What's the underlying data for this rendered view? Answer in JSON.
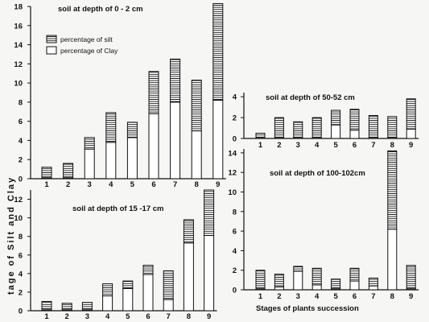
{
  "figure": {
    "ylabel": "tage of Silt and Clay",
    "xlabel": "Stages of plants succession"
  },
  "colors": {
    "ink": "#111111",
    "paper": "#f6f6f4",
    "bar_fill": "#ffffff"
  },
  "chart_data": [
    {
      "type": "bar",
      "stacked": true,
      "title": "soil at depth of 0 - 2 cm",
      "categories": [
        "1",
        "2",
        "3",
        "4",
        "5",
        "6",
        "7",
        "8",
        "9"
      ],
      "series": [
        {
          "name": "percentage of Clay",
          "pattern": "plain",
          "values": [
            0.1,
            0.1,
            3.1,
            3.8,
            4.3,
            6.8,
            8.0,
            5.0,
            8.2
          ]
        },
        {
          "name": "percentage of silt",
          "pattern": "horizontal-hatch",
          "values": [
            1.1,
            1.5,
            1.2,
            3.1,
            1.6,
            4.4,
            4.5,
            5.3,
            10.1
          ]
        }
      ],
      "yticks": [
        "0",
        "2",
        "4",
        "6",
        "8",
        "10",
        "12",
        "14",
        "16",
        "18"
      ],
      "ylim": [
        0,
        18
      ],
      "legend": "top-left"
    },
    {
      "type": "bar",
      "stacked": true,
      "title": "soil at depth of 15 -17 cm",
      "categories": [
        "1",
        "2",
        "3",
        "4",
        "5",
        "6",
        "7",
        "8",
        "9"
      ],
      "series": [
        {
          "name": "percentage of Clay",
          "pattern": "plain",
          "values": [
            0.1,
            0.1,
            0.1,
            1.6,
            2.4,
            3.9,
            1.2,
            7.3,
            8.1
          ]
        },
        {
          "name": "percentage of silt",
          "pattern": "horizontal-hatch",
          "values": [
            0.9,
            0.7,
            0.8,
            1.3,
            0.8,
            1.0,
            3.1,
            2.5,
            4.9
          ]
        }
      ],
      "yticks": [
        "0",
        "2",
        "4",
        "6",
        "8",
        "10",
        "12"
      ],
      "ylim": [
        0,
        13
      ]
    },
    {
      "type": "bar",
      "stacked": true,
      "title": "soil at depth of 50-52 cm",
      "categories": [
        "1",
        "2",
        "3",
        "4",
        "5",
        "6",
        "7",
        "8",
        "9"
      ],
      "series": [
        {
          "name": "percentage of Clay",
          "pattern": "plain",
          "values": [
            0.1,
            0.1,
            0.1,
            0.1,
            1.3,
            0.8,
            0.1,
            0.1,
            0.9
          ]
        },
        {
          "name": "percentage of silt",
          "pattern": "horizontal-hatch",
          "values": [
            0.4,
            1.9,
            1.5,
            1.9,
            1.4,
            2.0,
            2.1,
            2.0,
            2.9
          ]
        }
      ],
      "yticks": [
        "0",
        "2",
        "4"
      ],
      "ylim": [
        0,
        4.4
      ]
    },
    {
      "type": "bar",
      "stacked": true,
      "title": "soil at depth of 100-102cm",
      "categories": [
        "1",
        "2",
        "3",
        "4",
        "5",
        "6",
        "7",
        "8",
        "9"
      ],
      "series": [
        {
          "name": "percentage of Clay",
          "pattern": "plain",
          "values": [
            0.1,
            0.3,
            1.9,
            0.5,
            0.1,
            0.9,
            0.4,
            6.2,
            0.1
          ]
        },
        {
          "name": "percentage of silt",
          "pattern": "horizontal-hatch",
          "values": [
            1.9,
            1.3,
            0.5,
            1.7,
            1.0,
            1.3,
            0.8,
            8.0,
            2.4
          ]
        }
      ],
      "yticks": [
        "0",
        "2",
        "4",
        "6",
        "8",
        "10",
        "12",
        "14"
      ],
      "ylim": [
        0,
        14.4
      ]
    }
  ]
}
